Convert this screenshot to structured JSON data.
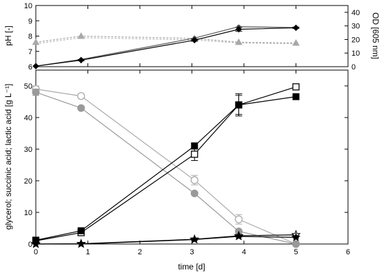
{
  "chart_data": [
    {
      "type": "line",
      "panel": "top",
      "ylabel": "pH [-]",
      "y2label": "OD [605 nm]",
      "xlim": [
        0,
        6
      ],
      "ylim": [
        6,
        10
      ],
      "y2lim": [
        0,
        45
      ],
      "y_ticks": [
        6,
        7,
        8,
        9,
        10
      ],
      "y2_ticks": [
        0,
        10,
        20,
        30,
        40
      ],
      "x": [
        0,
        0.87,
        3.05,
        3.9,
        5
      ],
      "series": [
        {
          "axis": "right",
          "color": "#000000",
          "marker": "diamond",
          "values": [
            0.4,
            4.8,
            19.5,
            27.5,
            28.6
          ],
          "errors": [
            0,
            0.5,
            0.8,
            1.4,
            0.5
          ]
        },
        {
          "axis": "right",
          "color": "#555555",
          "marker": "circle",
          "values": [
            0.4,
            5.3,
            21.0,
            29.4,
            28.8
          ],
          "errors": [
            0,
            0,
            0,
            0,
            0
          ]
        },
        {
          "axis": "left",
          "color": "#a8a8a8",
          "marker": "triangle",
          "dashed": true,
          "values": [
            7.6,
            8.0,
            7.85,
            7.6,
            7.55
          ],
          "errors": [
            0,
            0,
            0,
            0,
            0
          ]
        },
        {
          "axis": "left",
          "color": "#bbbbbb",
          "marker": "none",
          "dashed": true,
          "values": [
            7.5,
            7.9,
            7.75,
            7.55,
            7.5
          ],
          "errors": [
            0,
            0,
            0,
            0,
            0
          ]
        }
      ]
    },
    {
      "type": "line",
      "panel": "bottom",
      "xlabel": "time [d]",
      "ylabel": "glycerol; succinic acid; lactic acid [g L⁻¹]",
      "xlim": [
        0,
        6
      ],
      "ylim": [
        0,
        55
      ],
      "x_ticks": [
        0,
        1,
        2,
        3,
        4,
        5,
        6
      ],
      "y_ticks": [
        0,
        10,
        20,
        30,
        40,
        50
      ],
      "x": [
        0,
        0.87,
        3.05,
        3.9,
        5
      ],
      "series": [
        {
          "color": "#aaaaaa",
          "marker": "circle-open",
          "values": [
            49,
            46.8,
            20.2,
            7.8,
            0
          ],
          "errors": [
            1.0,
            0.5,
            1.5,
            1.5,
            0
          ]
        },
        {
          "color": "#999999",
          "marker": "circle-filled",
          "values": [
            48,
            43,
            16,
            4,
            0
          ],
          "errors": [
            1.0,
            0,
            0,
            0,
            0
          ]
        },
        {
          "color": "#000000",
          "marker": "square-open",
          "values": [
            1,
            3.6,
            28.4,
            44,
            49.7
          ],
          "errors": [
            0.5,
            0.5,
            2.0,
            3.5,
            0.5
          ]
        },
        {
          "color": "#000000",
          "marker": "square-filled",
          "values": [
            1.2,
            4.2,
            31,
            44,
            46.6
          ],
          "errors": [
            1.0,
            0.4,
            1.0,
            3.0,
            0.3
          ]
        },
        {
          "color": "#000000",
          "marker": "star-open",
          "values": [
            0,
            0.1,
            1.5,
            2.6,
            2.9
          ],
          "errors": [
            0,
            0,
            0.3,
            0.4,
            0.3
          ]
        },
        {
          "color": "#000000",
          "marker": "star-filled",
          "values": [
            0,
            0,
            1.4,
            2.4,
            2.1
          ],
          "errors": [
            0,
            0,
            0,
            0,
            0
          ]
        }
      ]
    }
  ]
}
